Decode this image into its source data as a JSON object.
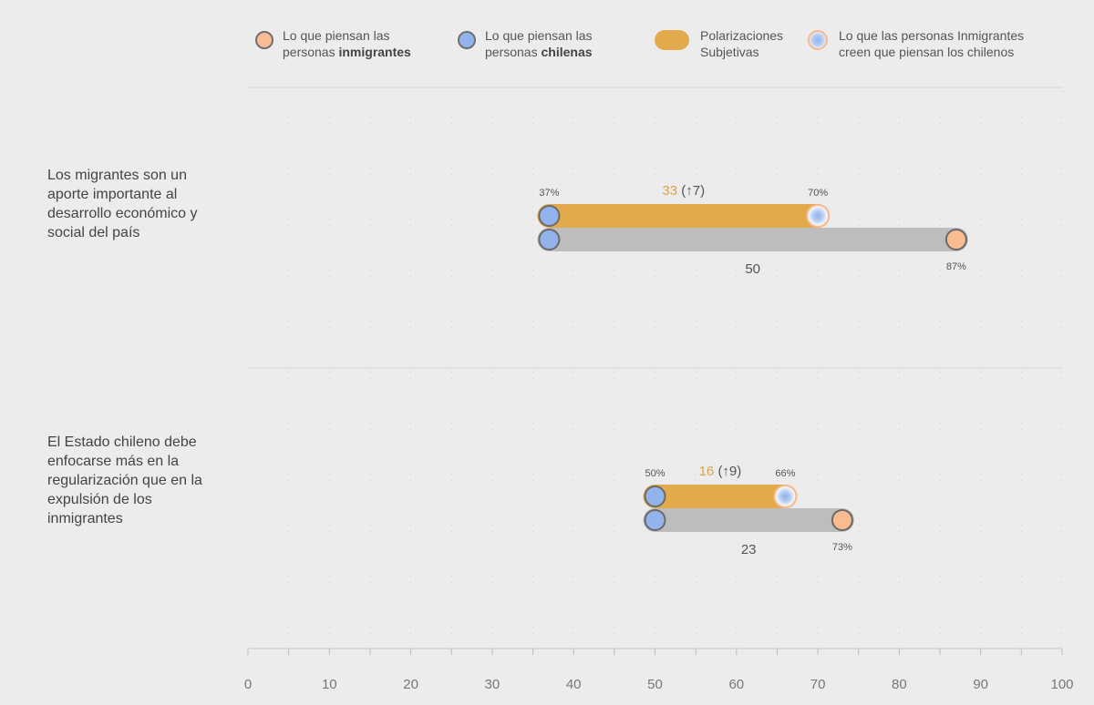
{
  "legend": {
    "immigrants": {
      "line1": "Lo que piensan las",
      "prefix": "personas ",
      "bold": "inmigrantes"
    },
    "chileans": {
      "line1": "Lo que piensan las",
      "prefix": "personas ",
      "bold": "chilenas"
    },
    "polarization": {
      "line1": "Polarizaciones",
      "line2": "Subjetivas"
    },
    "perceived": {
      "line1": "Lo que las personas Inmigrantes",
      "line2": "creen que piensan los chilenos"
    }
  },
  "colors": {
    "immigrants": "#f9bc90",
    "chileans": "#92b3eb",
    "polarization_bar": "#e2aa4a",
    "gap_bar": "#bdbdbd",
    "polarization_text": "#e0a24a",
    "marker_stroke": "#6a6a6a",
    "perceived_ring": "#f7b988"
  },
  "chart_data": {
    "type": "dumbbell",
    "xlim": [
      0,
      100
    ],
    "x_ticks": [
      "0",
      "10",
      "20",
      "30",
      "40",
      "50",
      "60",
      "70",
      "80",
      "90",
      "100"
    ],
    "grid": true,
    "legend_position": "top",
    "rows": [
      {
        "question": "Los migrantes son un aporte importante al desarrollo económico y social del país",
        "chileans": 37,
        "chileans_label": "37%",
        "perceived": 70,
        "perceived_label": "70%",
        "immigrants": 87,
        "immigrants_label": "87%",
        "subjective_polarization": 33,
        "subjective_change_label": "(↑7)",
        "gap": 50
      },
      {
        "question": "El Estado chileno debe enfocarse más en la regularización que en la expulsión de los inmigrantes",
        "chileans": 50,
        "chileans_label": "50%",
        "perceived": 66,
        "perceived_label": "66%",
        "immigrants": 73,
        "immigrants_label": "73%",
        "subjective_polarization": 16,
        "subjective_change_label": "(↑9)",
        "gap": 23
      }
    ]
  }
}
